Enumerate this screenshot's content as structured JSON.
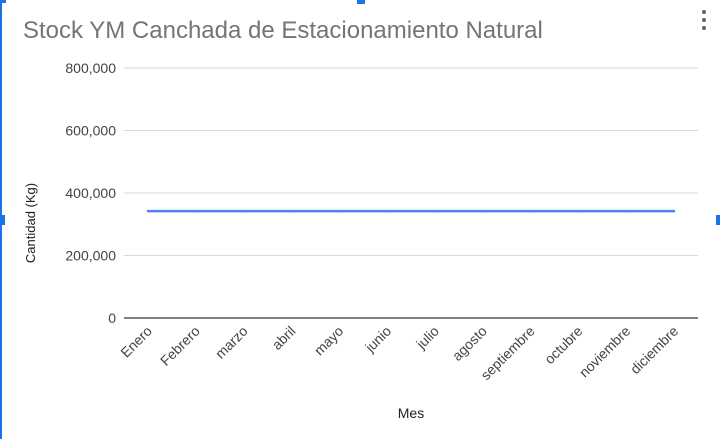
{
  "menu": {
    "icon": "more-vert-icon"
  },
  "colors": {
    "series": "#4a86e8",
    "grid": "#d9d9d9",
    "axis": "#333333",
    "title": "#757575",
    "tick": "#444444",
    "selection": "#1a73e8"
  },
  "chart_data": {
    "type": "line",
    "title": "Stock YM Canchada de Estacionamiento Natural",
    "xlabel": "Mes",
    "ylabel": "Cantidad (Kg)",
    "categories": [
      "Enero",
      "Febrero",
      "marzo",
      "abril",
      "mayo",
      "junio",
      "julio",
      "agosto",
      "septiembre",
      "octubre",
      "noviembre",
      "diciembre"
    ],
    "series": [
      {
        "values": [
          342000,
          342000,
          342000,
          342000,
          342000,
          342000,
          342000,
          342000,
          342000,
          342000,
          342000,
          342000
        ]
      }
    ],
    "yticks": [
      "0",
      "200,000",
      "400,000",
      "600,000",
      "800,000"
    ],
    "ylim": [
      0,
      800000
    ],
    "grid": true,
    "legend": "none"
  }
}
